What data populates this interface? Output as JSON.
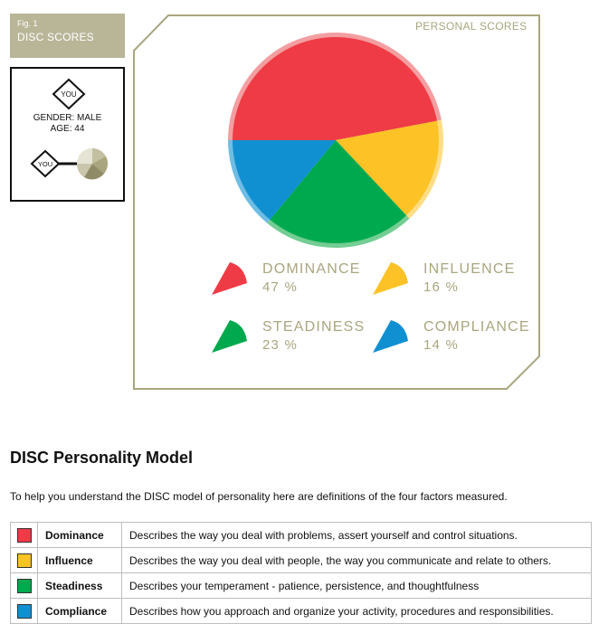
{
  "figure": {
    "fig_number": "Fig. 1",
    "title": "DISC SCORES",
    "panel_caption": "PERSONAL SCORES"
  },
  "you_card": {
    "badge_label": "YOU",
    "gender_text": "GENDER: MALE",
    "age_text": "AGE: 44",
    "link_badge_label": "YOU"
  },
  "chart_data": {
    "type": "pie",
    "title": "PERSONAL SCORES",
    "slices": [
      {
        "name": "DOMINANCE",
        "value": 47,
        "label": "47 %",
        "color": "#ee3b45",
        "rim_color": "#f39ea1"
      },
      {
        "name": "INFLUENCE",
        "value": 16,
        "label": "16 %",
        "color": "#fdc226",
        "rim_color": "#fedd86"
      },
      {
        "name": "STEADINESS",
        "value": 23,
        "label": "23 %",
        "color": "#00a94d",
        "rim_color": "#74cd93"
      },
      {
        "name": "COMPLIANCE",
        "value": 14,
        "label": "14 %",
        "color": "#1190d1",
        "rim_color": "#6fbde4"
      }
    ]
  },
  "section": {
    "heading": "DISC Personality Model",
    "intro": "To help you understand the DISC model of personality here are definitions of the four factors measured."
  },
  "definitions": [
    {
      "name": "Dominance",
      "color": "#ee3b45",
      "description": "Describes the way you deal with problems, assert yourself and control situations."
    },
    {
      "name": "Influence",
      "color": "#fdc226",
      "description": "Describes the way you deal with people, the way you communicate and relate to others."
    },
    {
      "name": "Steadiness",
      "color": "#00a94d",
      "description": "Describes your temperament - patience, persistence, and thoughtfulness"
    },
    {
      "name": "Compliance",
      "color": "#1190d1",
      "description": "Describes how you approach and organize your activity, procedures and responsibilities."
    }
  ]
}
